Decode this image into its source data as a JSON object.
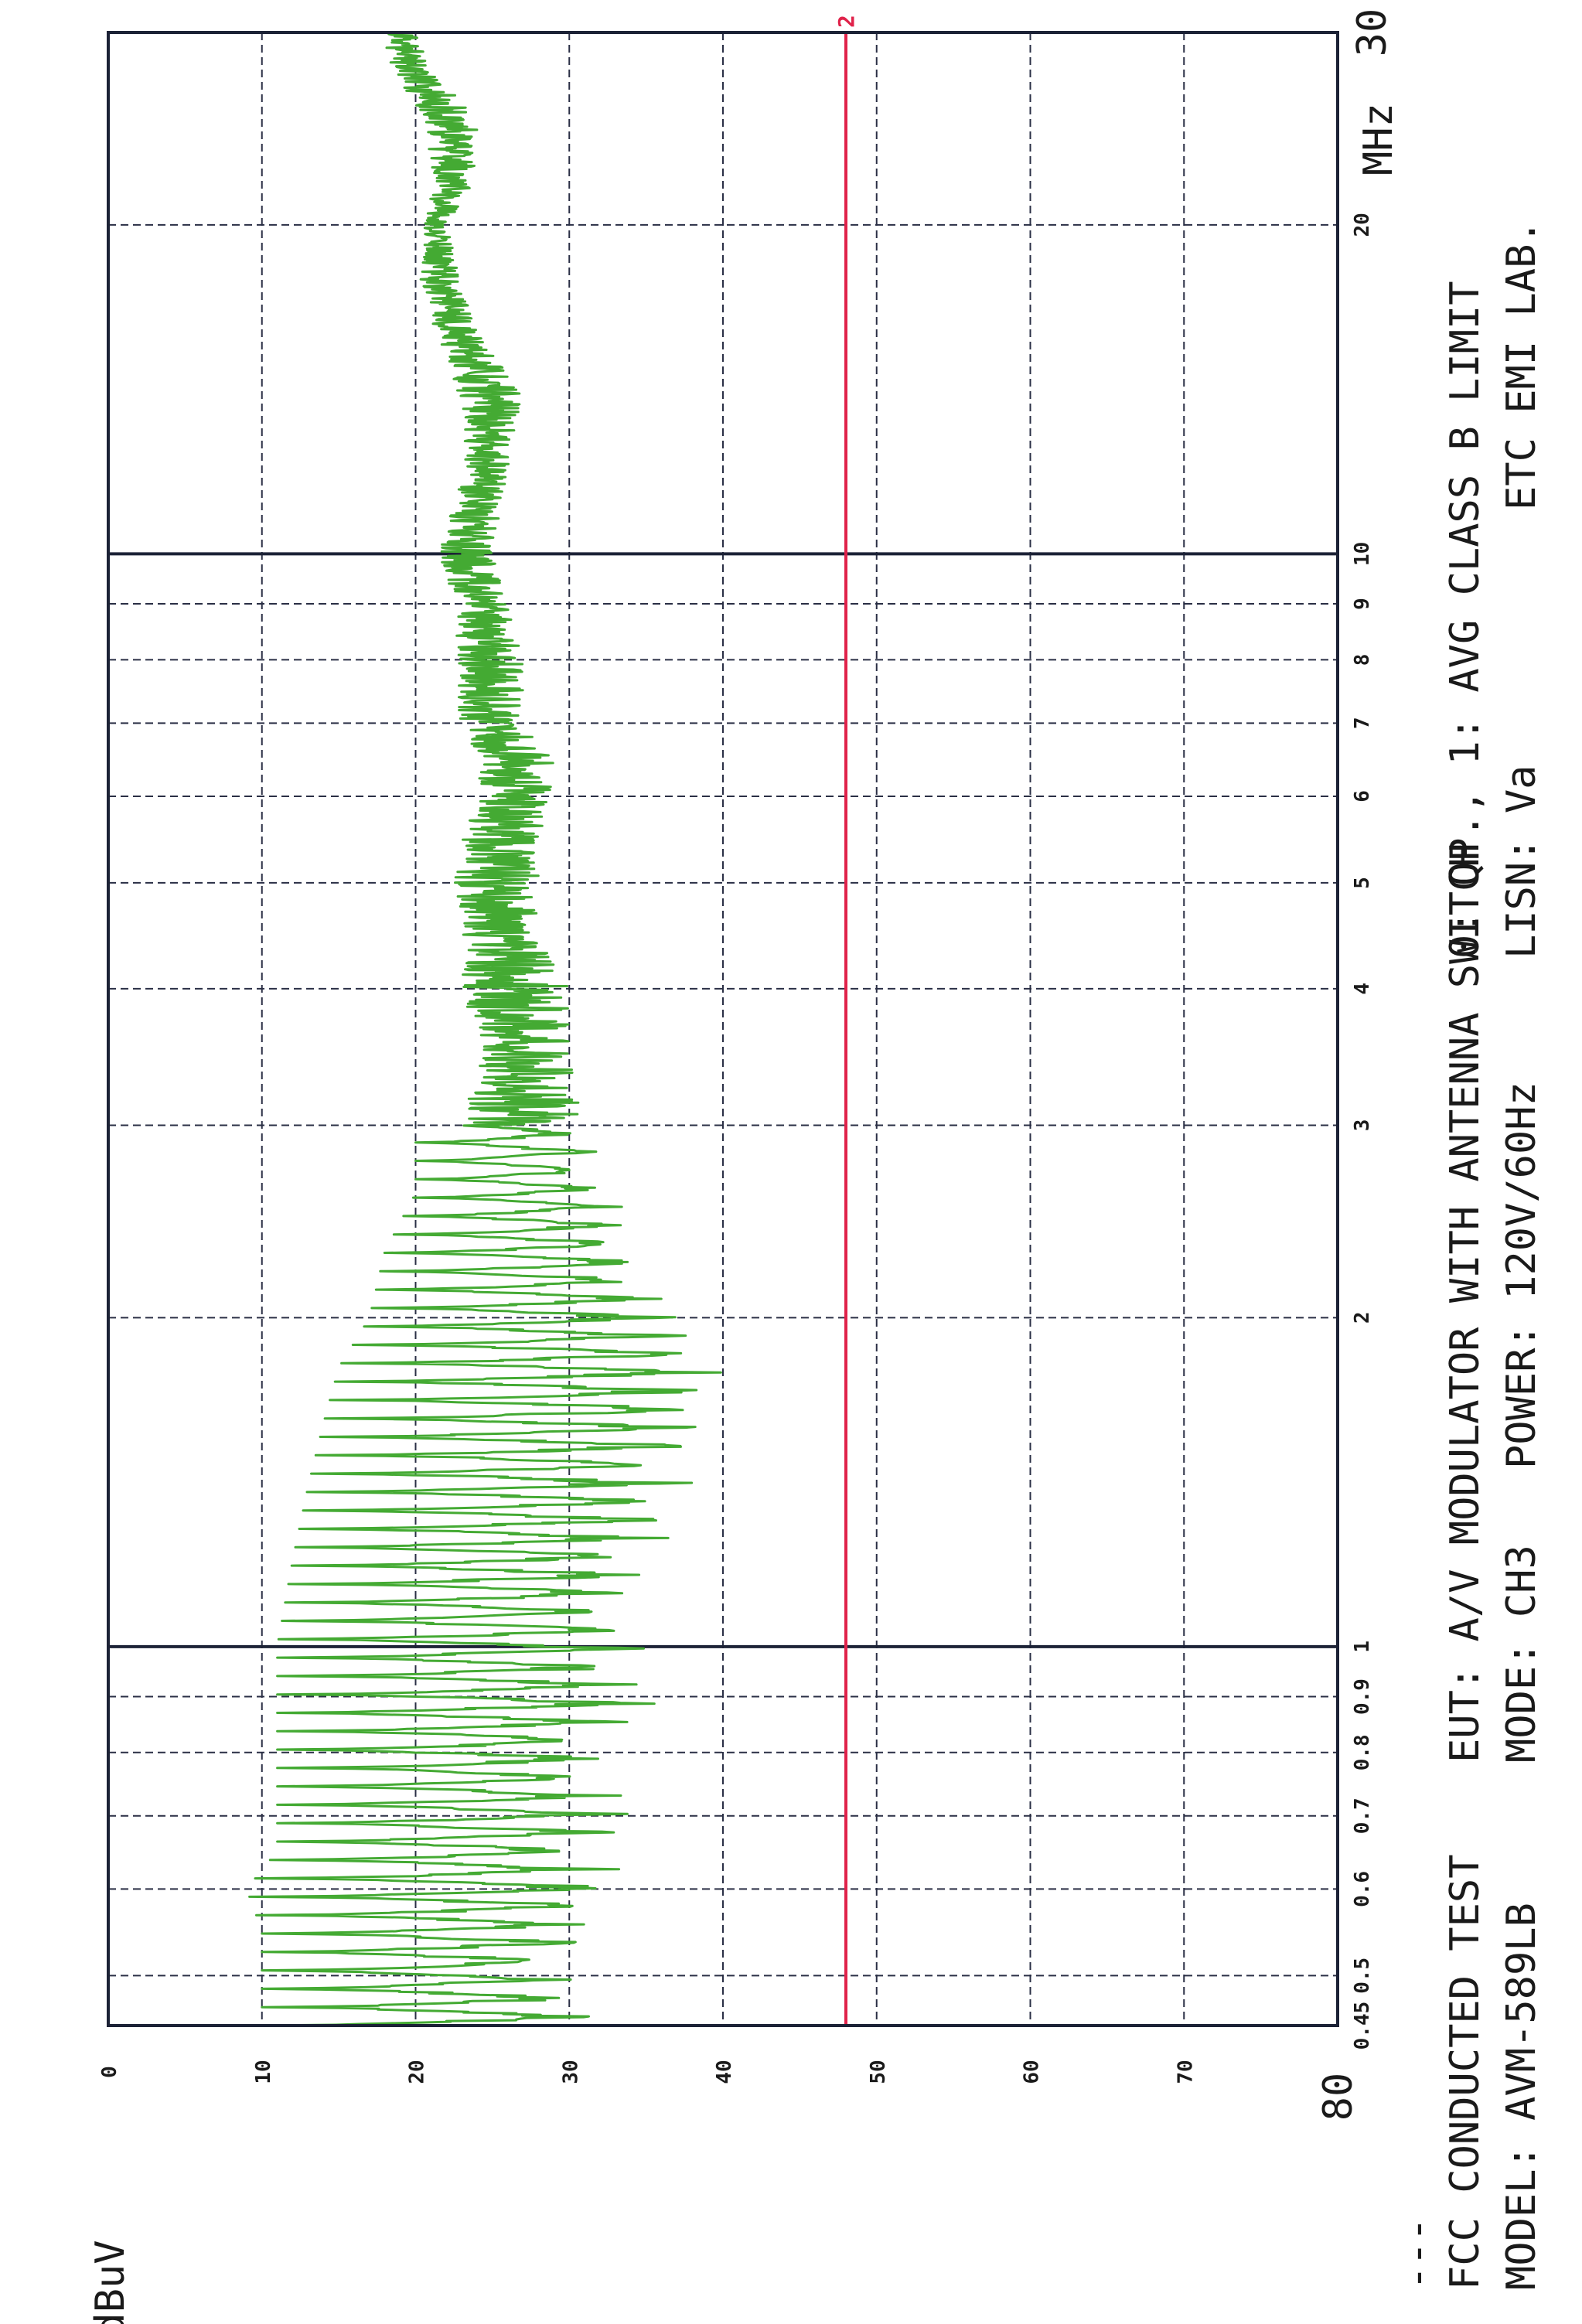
{
  "chart_data": {
    "type": "line",
    "ylabel": "dBuV",
    "xunit": "MHz",
    "xscale": "log",
    "xlim": [
      0.45,
      30
    ],
    "ylim": [
      0,
      80
    ],
    "y_ticks": [
      "0",
      "10",
      "20",
      "30",
      "40",
      "50",
      "60",
      "70",
      "80"
    ],
    "x_ticks": [
      {
        "value": 0.45,
        "label": "0.45"
      },
      {
        "value": 0.5,
        "label": "0.5"
      },
      {
        "value": 0.6,
        "label": "0.6"
      },
      {
        "value": 0.7,
        "label": "0.7"
      },
      {
        "value": 0.8,
        "label": "0.8"
      },
      {
        "value": 0.9,
        "label": "0.9"
      },
      {
        "value": 1,
        "label": "1"
      },
      {
        "value": 2,
        "label": "2"
      },
      {
        "value": 3,
        "label": "3"
      },
      {
        "value": 4,
        "label": "4"
      },
      {
        "value": 5,
        "label": "5"
      },
      {
        "value": 6,
        "label": "6"
      },
      {
        "value": 7,
        "label": "7"
      },
      {
        "value": 8,
        "label": "8"
      },
      {
        "value": 9,
        "label": "9"
      },
      {
        "value": 10,
        "label": "10"
      },
      {
        "value": 20,
        "label": "20"
      },
      {
        "value": 30,
        "label": "30"
      }
    ],
    "limit_line": {
      "label": "2",
      "value": 48,
      "color": "#e0224a"
    },
    "series": [
      {
        "color": "#44aa33",
        "envelope": [
          [
            0.45,
            10,
            34
          ],
          [
            0.5,
            10,
            30
          ],
          [
            0.55,
            10,
            33
          ],
          [
            0.6,
            9,
            34
          ],
          [
            0.65,
            11,
            33
          ],
          [
            0.7,
            11,
            34
          ],
          [
            0.8,
            11,
            34
          ],
          [
            0.9,
            11,
            36
          ],
          [
            1.0,
            11,
            35
          ],
          [
            1.2,
            12,
            36
          ],
          [
            1.4,
            13,
            38
          ],
          [
            1.6,
            14,
            40
          ],
          [
            1.8,
            15,
            40
          ],
          [
            2.0,
            17,
            37
          ],
          [
            2.3,
            18,
            35
          ],
          [
            2.6,
            20,
            33
          ],
          [
            3.0,
            20,
            31
          ],
          [
            3.5,
            21,
            30
          ],
          [
            4.0,
            20,
            30
          ],
          [
            4.5,
            21,
            28
          ],
          [
            5.0,
            20,
            28
          ],
          [
            5.5,
            21,
            28
          ],
          [
            6.0,
            22,
            29
          ],
          [
            6.5,
            22,
            29
          ],
          [
            7.0,
            21,
            27
          ],
          [
            8.0,
            21,
            27
          ],
          [
            9.0,
            21,
            26
          ],
          [
            10.0,
            20,
            25
          ],
          [
            12.0,
            22,
            26
          ],
          [
            14.0,
            21,
            27
          ],
          [
            16.0,
            20,
            24
          ],
          [
            18.0,
            19,
            23
          ],
          [
            20.0,
            20,
            22
          ],
          [
            22.0,
            20,
            24
          ],
          [
            25.0,
            19,
            24
          ],
          [
            28.0,
            17,
            21
          ],
          [
            30.0,
            17,
            20
          ]
        ]
      }
    ]
  },
  "footer": {
    "line1_left": "FCC CONDUCTED TEST",
    "line1_mid": "EUT: A/V MODULATOR WITH ANTENNA SWITCH",
    "line1_right": "0: QP., 1: AVG CLASS B LIMIT",
    "line2_left": "MODEL: AVM-589LB",
    "line2_mid": "MODE: CH3",
    "line2_mid2": "POWER: 120V/60Hz",
    "line2_right1": "LISN: Va",
    "line2_right2": "ETC EMI LAB."
  },
  "legend_mark": "---"
}
